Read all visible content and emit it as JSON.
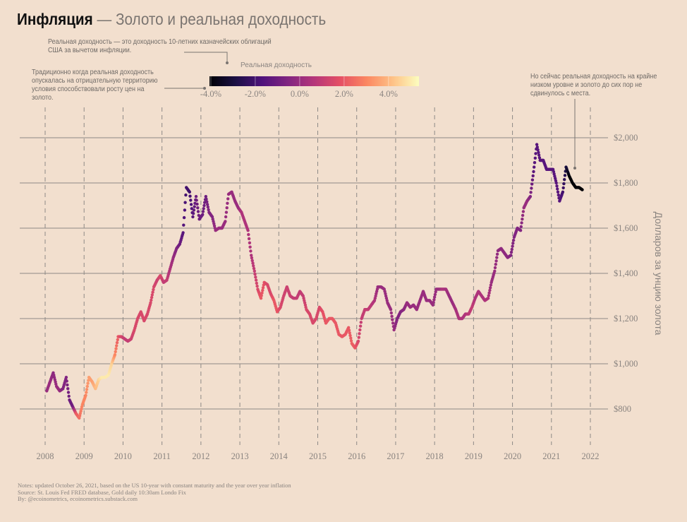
{
  "title": {
    "bold": "Инфляция",
    "rest": " — Золото и реальная доходность"
  },
  "annotations": {
    "definition": "Реальная доходность — это доходность 10-летних казначейских облигаций США за вычетом инфляции.",
    "traditional": "Традиционно когда реальная доходность опускалась на отрицательную территорию условия способствовали росту цен на золото.",
    "now": "Но сейчас реальная доходность на крайне низком уровне и золото до сих пор не сдвинулось с места."
  },
  "notes": {
    "line1": "Notes: updated October 26, 2021, based on the US 10-year with constant maturity and the year over year inflation",
    "line2": "Source: St. Louis Fed FRED database, Gold daily 10:30am Londo Fix",
    "line3": "By: @ecoinometrics, ecoinometrics.substack.com"
  },
  "chart_data": {
    "type": "scatter",
    "ylabel": "Долларов за унцию золота",
    "xlim": [
      2008,
      2022
    ],
    "ylim": [
      800,
      2000
    ],
    "x_ticks": [
      "2008",
      "2009",
      "2010",
      "2011",
      "2012",
      "2013",
      "2014",
      "2015",
      "2016",
      "2017",
      "2018",
      "2019",
      "2020",
      "2021",
      "2022"
    ],
    "y_ticks": [
      {
        "v": 800,
        "label": "$800"
      },
      {
        "v": 1000,
        "label": "$1,000"
      },
      {
        "v": 1200,
        "label": "$1,200"
      },
      {
        "v": 1400,
        "label": "$1,400"
      },
      {
        "v": 1600,
        "label": "$1,600"
      },
      {
        "v": 1800,
        "label": "$1,800"
      },
      {
        "v": 2000,
        "label": "$2,000"
      }
    ],
    "grid": true,
    "colorbar": {
      "title": "Реальная доходность",
      "colormap": "magma",
      "range": [
        -4.06,
        5.37
      ],
      "ticks": [
        {
          "v": -4,
          "label": "-4.0%"
        },
        {
          "v": -2,
          "label": "-2.0%"
        },
        {
          "v": 0,
          "label": "0.0%"
        },
        {
          "v": 2,
          "label": "2.0%"
        },
        {
          "v": 4,
          "label": "4.0%"
        }
      ],
      "colors": [
        "#000004",
        "#1c1044",
        "#4f127b",
        "#812581",
        "#b5367a",
        "#e55064",
        "#fb8761",
        "#fec287",
        "#fcfdbf"
      ]
    },
    "monthly": [
      {
        "year": 2008,
        "price": [
          880,
          920,
          960,
          900,
          880,
          890,
          940,
          840,
          810,
          780,
          760,
          820
        ],
        "real_yield": [
          0,
          0,
          -0.3,
          0,
          0,
          -0.5,
          -0.5,
          -1,
          -1,
          2,
          2.5,
          3
        ]
      },
      {
        "year": 2009,
        "price": [
          860,
          940,
          920,
          890,
          930,
          940,
          940,
          950,
          1000,
          1040,
          1120,
          1120
        ],
        "real_yield": [
          3,
          3.5,
          3.5,
          4,
          4.5,
          5,
          5,
          5,
          4.5,
          3,
          2,
          1.5
        ]
      },
      {
        "year": 2010,
        "price": [
          1110,
          1100,
          1110,
          1150,
          1200,
          1230,
          1190,
          1220,
          1270,
          1340,
          1370,
          1390
        ],
        "real_yield": [
          1,
          1,
          1.2,
          1.5,
          1.5,
          1.5,
          1.5,
          1.5,
          1.5,
          1.5,
          1.2,
          1.5
        ]
      },
      {
        "year": 2011,
        "price": [
          1360,
          1370,
          1420,
          1470,
          1510,
          1530,
          1580,
          1780,
          1760,
          1650,
          1740,
          1640
        ],
        "real_yield": [
          1,
          1,
          0.5,
          0,
          -0.5,
          -1,
          -1.5,
          -2,
          -2,
          -1.5,
          -1,
          -1
        ]
      },
      {
        "year": 2012,
        "price": [
          1660,
          1740,
          1670,
          1650,
          1590,
          1600,
          1600,
          1630,
          1750,
          1760,
          1720,
          1690
        ],
        "real_yield": [
          -1,
          -1,
          -0.5,
          -0.5,
          0,
          0,
          0,
          0,
          0,
          0,
          0,
          0
        ]
      },
      {
        "year": 2013,
        "price": [
          1670,
          1630,
          1590,
          1480,
          1410,
          1330,
          1290,
          1360,
          1350,
          1310,
          1280,
          1230
        ],
        "real_yield": [
          0.5,
          0.5,
          0.5,
          0.5,
          1,
          1.5,
          2,
          1.8,
          1.5,
          1.5,
          2,
          2
        ]
      },
      {
        "year": 2014,
        "price": [
          1250,
          1300,
          1340,
          1300,
          1290,
          1290,
          1320,
          1300,
          1240,
          1220,
          1180,
          1200
        ],
        "real_yield": [
          1.5,
          1.3,
          1.2,
          1.2,
          1,
          1,
          1,
          1,
          1.5,
          1.5,
          1.5,
          1.5
        ]
      },
      {
        "year": 2015,
        "price": [
          1250,
          1230,
          1180,
          1200,
          1200,
          1180,
          1130,
          1120,
          1130,
          1160,
          1090,
          1070
        ],
        "real_yield": [
          1.5,
          1.8,
          2,
          2,
          2,
          2,
          2,
          2,
          2,
          2,
          2.2,
          2
        ]
      },
      {
        "year": 2016,
        "price": [
          1100,
          1200,
          1240,
          1240,
          1260,
          1280,
          1340,
          1340,
          1330,
          1270,
          1240,
          1150
        ],
        "real_yield": [
          1.5,
          1,
          1,
          1,
          0.8,
          0.5,
          0,
          0,
          0,
          0,
          0,
          0
        ]
      },
      {
        "year": 2017,
        "price": [
          1200,
          1230,
          1240,
          1270,
          1250,
          1260,
          1240,
          1280,
          1320,
          1280,
          1280,
          1260
        ],
        "real_yield": [
          -0.5,
          -0.5,
          -0.3,
          0,
          0,
          0,
          0,
          0,
          0,
          0,
          0,
          0
        ]
      },
      {
        "year": 2018,
        "price": [
          1330,
          1330,
          1330,
          1330,
          1300,
          1270,
          1240,
          1200,
          1200,
          1220,
          1220,
          1250
        ],
        "real_yield": [
          0,
          0,
          0.5,
          0.3,
          0,
          0,
          0.3,
          0.5,
          0.5,
          0.5,
          0.8,
          1
        ]
      },
      {
        "year": 2019,
        "price": [
          1290,
          1320,
          1300,
          1280,
          1290,
          1360,
          1410,
          1500,
          1510,
          1490,
          1470,
          1480
        ],
        "real_yield": [
          0.5,
          0.5,
          0.5,
          0.5,
          0.5,
          0,
          0,
          -0.2,
          -0.2,
          -0.2,
          -0.3,
          -0.5
        ]
      },
      {
        "year": 2020,
        "price": [
          1560,
          1600,
          1590,
          1690,
          1720,
          1740,
          1850,
          1970,
          1900,
          1900,
          1860,
          1860
        ],
        "real_yield": [
          -0.5,
          -0.5,
          -0.5,
          0,
          0,
          -0.5,
          -1.5,
          -1.5,
          -1.5,
          -1.5,
          -1.5,
          -1.5
        ]
      },
      {
        "year": 2021,
        "price": [
          1860,
          1800,
          1720,
          1760,
          1870,
          1830,
          1800,
          1780,
          1780,
          1770
        ],
        "real_yield": [
          -1.5,
          -1.5,
          -1.5,
          -2,
          -3,
          -4,
          -4,
          -4,
          -4,
          -4
        ]
      }
    ]
  }
}
